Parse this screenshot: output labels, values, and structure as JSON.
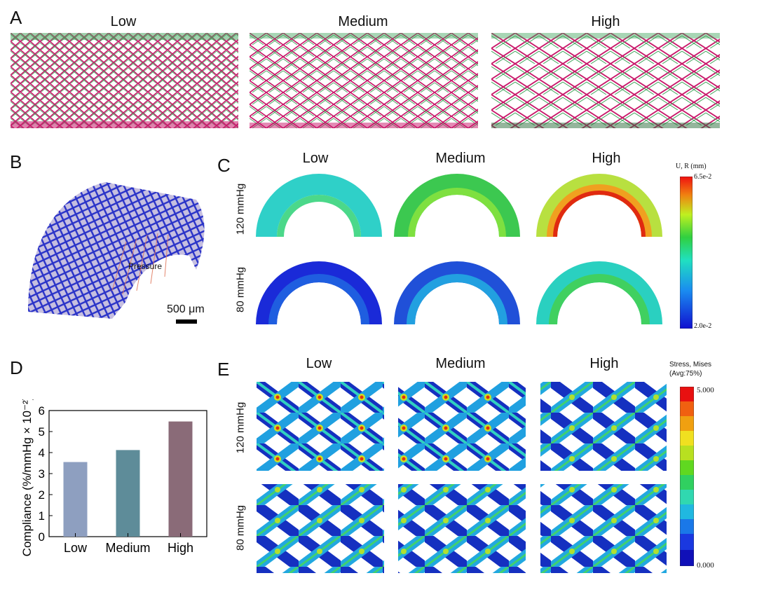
{
  "panels": {
    "A": {
      "letter": "A",
      "titles": [
        "Low",
        "Medium",
        "High"
      ]
    },
    "B": {
      "letter": "B",
      "pressure_label": "Pressure",
      "scale_label": "500 μm"
    },
    "C": {
      "letter": "C",
      "titles": [
        "Low",
        "Medium",
        "High"
      ],
      "rows": [
        "120 mmHg",
        "80 mmHg"
      ],
      "colorbar": {
        "title": "U, R (mm)",
        "max": "6.5e-2",
        "min": "2.0e-2"
      }
    },
    "D": {
      "letter": "D"
    },
    "E": {
      "letter": "E",
      "titles": [
        "Low",
        "Medium",
        "High"
      ],
      "rows": [
        "120 mmHg",
        "80 mmHg"
      ],
      "colorbar": {
        "title_line1": "Stress, Mises",
        "title_line2": "(Avg:75%)",
        "max": "5.000",
        "min": "0.000"
      }
    }
  },
  "colors": {
    "strut_pink": "#c8186a",
    "strut_green": "#3fa35a",
    "lattice_blue": "#2a33c8",
    "tube_lavender": "#b3a9d6",
    "bar_low": "#8e9fc0",
    "bar_medium": "#5e8c99",
    "bar_high": "#8a6b78"
  },
  "chart_data": {
    "type": "bar",
    "categories": [
      "Low",
      "Medium",
      "High"
    ],
    "values": [
      3.55,
      4.12,
      5.48
    ],
    "ylabel": "Compliance (%/mmHg × 10⁻²)",
    "ylim": [
      0,
      6
    ],
    "yticks": [
      "0",
      "1",
      "2",
      "3",
      "4",
      "5",
      "6"
    ]
  }
}
